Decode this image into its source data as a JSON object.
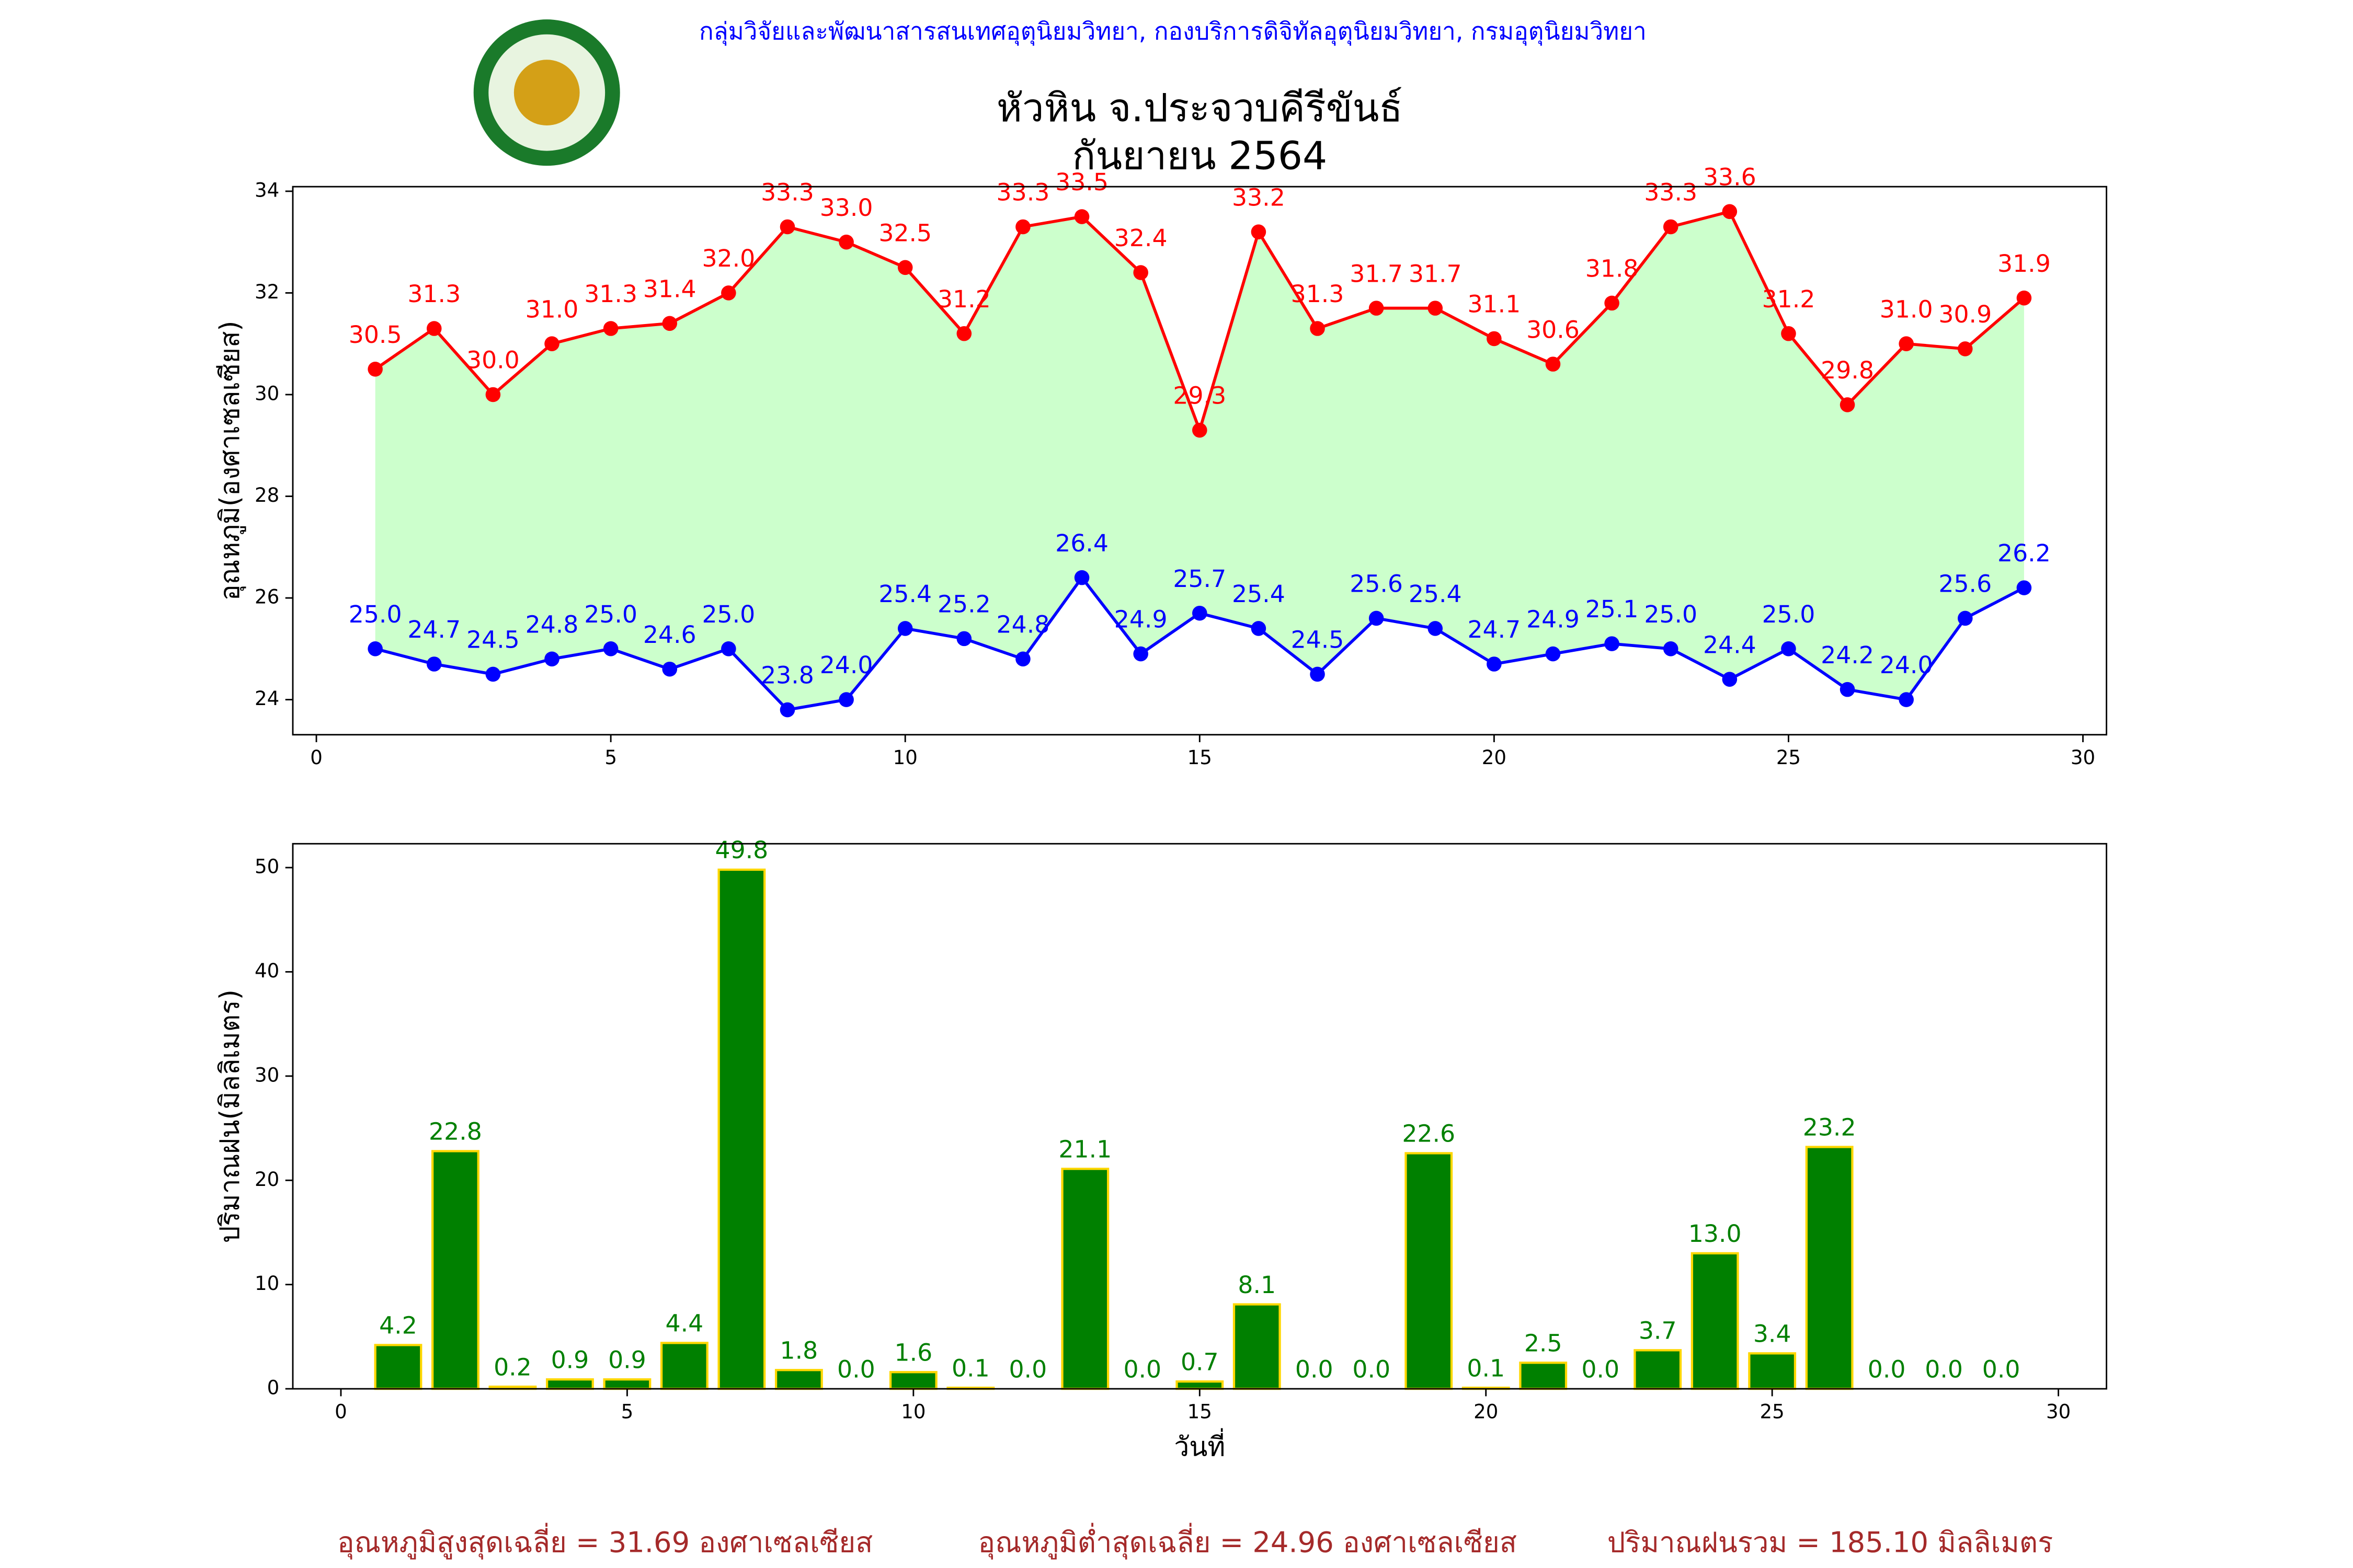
{
  "header": "กลุ่มวิจัยและพัฒนาสารสนเทศอุตุนิยมวิทยา, กองบริการดิจิทัลอุตุนิยมวิทยา, กรมอุตุนิยมวิทยา",
  "title": [
    "หัวหิน จ.ประจวบคีรีขันธ์",
    "กันยายน 2564"
  ],
  "footer": [
    "อุณหภูมิสูงสุดเฉลี่ย = 31.69 องศาเซลเซียส",
    "อุณหภูมิต่ำสุดเฉลี่ย = 24.96 องศาเซลเซียส",
    "ปริมาณฝนรวม = 185.10 มิลลิเมตร"
  ],
  "chart_data": [
    {
      "type": "line",
      "y_label": "อุณหภูมิ(องศาเซลเซียส)",
      "x": [
        1,
        2,
        3,
        4,
        5,
        6,
        7,
        8,
        9,
        10,
        11,
        12,
        13,
        14,
        15,
        16,
        17,
        18,
        19,
        20,
        21,
        22,
        23,
        24,
        25,
        26,
        27,
        28,
        29
      ],
      "xlim": [
        -0.4,
        30.4
      ],
      "xticks": [
        0,
        5,
        10,
        15,
        20,
        25,
        30
      ],
      "ylim": [
        23.31,
        34.09
      ],
      "yticks": [
        24,
        26,
        28,
        30,
        32,
        34
      ],
      "fill_between": true,
      "fill_color": "#ccffcc",
      "series": [
        {
          "color": "#ff0000",
          "values": [
            30.5,
            31.3,
            30.0,
            31.0,
            31.3,
            31.4,
            32.0,
            33.3,
            33.0,
            32.5,
            31.2,
            33.3,
            33.5,
            32.4,
            29.3,
            33.2,
            31.3,
            31.7,
            31.7,
            31.1,
            30.6,
            31.8,
            33.3,
            33.6,
            31.2,
            29.8,
            31.0,
            30.9,
            31.9
          ],
          "value_labels": [
            "30.5",
            "31.3",
            "30.0",
            "31.0",
            "31.3",
            "31.4",
            "32.0",
            "33.3",
            "33.0",
            "32.5",
            "31.2",
            "33.3",
            "33.5",
            "32.4",
            "29.3",
            "33.2",
            "31.3",
            "31.7",
            "31.7",
            "31.1",
            "30.6",
            "31.8",
            "33.3",
            "33.6",
            "31.2",
            "29.8",
            "31.0",
            "30.9",
            "31.9"
          ]
        },
        {
          "color": "#0000ff",
          "values": [
            25.0,
            24.7,
            24.5,
            24.8,
            25.0,
            24.6,
            25.0,
            23.8,
            24.0,
            25.4,
            25.2,
            24.8,
            26.4,
            24.9,
            25.7,
            25.4,
            24.5,
            25.6,
            25.4,
            24.7,
            24.9,
            25.1,
            25.0,
            24.4,
            25.0,
            24.2,
            24.0,
            25.6,
            26.2
          ],
          "value_labels": [
            "25.0",
            "24.7",
            "24.5",
            "24.8",
            "25.0",
            "24.6",
            "25.0",
            "23.8",
            "24.0",
            "25.4",
            "25.2",
            "24.8",
            "26.4",
            "24.9",
            "25.7",
            "25.4",
            "24.5",
            "25.6",
            "25.4",
            "24.7",
            "24.9",
            "25.1",
            "25.0",
            "24.4",
            "25.0",
            "24.2",
            "24.0",
            "25.6",
            "26.2"
          ]
        }
      ]
    },
    {
      "type": "bar",
      "y_label": "ปริมาณฝน(มิลลิเมตร)",
      "x_label": "วันที่",
      "x": [
        1,
        2,
        3,
        4,
        5,
        6,
        7,
        8,
        9,
        10,
        11,
        12,
        13,
        14,
        15,
        16,
        17,
        18,
        19,
        20,
        21,
        22,
        23,
        24,
        25,
        26,
        27,
        28,
        29
      ],
      "xlim": [
        -0.84,
        30.84
      ],
      "xticks": [
        0,
        5,
        10,
        15,
        20,
        25,
        30
      ],
      "ylim": [
        0,
        52.29
      ],
      "yticks": [
        0,
        10,
        20,
        30,
        40,
        50
      ],
      "bar_width": 0.8,
      "color": "#008000",
      "edge_color": "#ffd700",
      "label_color": "#008000",
      "values": [
        4.2,
        22.8,
        0.2,
        0.9,
        0.9,
        4.4,
        49.8,
        1.8,
        0.0,
        1.6,
        0.1,
        0.0,
        21.1,
        0.0,
        0.7,
        8.1,
        0.0,
        0.0,
        22.6,
        0.1,
        2.5,
        0.0,
        3.7,
        13.0,
        3.4,
        23.2,
        0.0,
        0.0,
        0.0
      ],
      "value_labels": [
        "4.2",
        "22.8",
        "0.2",
        "0.9",
        "0.9",
        "4.4",
        "49.8",
        "1.8",
        "0.0",
        "1.6",
        "0.1",
        "0.0",
        "21.1",
        "0.0",
        "0.7",
        "8.1",
        "0.0",
        "0.0",
        "22.6",
        "0.1",
        "2.5",
        "0.0",
        "3.7",
        "13.0",
        "3.4",
        "23.2",
        "0.0",
        "0.0",
        "0.0"
      ]
    }
  ]
}
